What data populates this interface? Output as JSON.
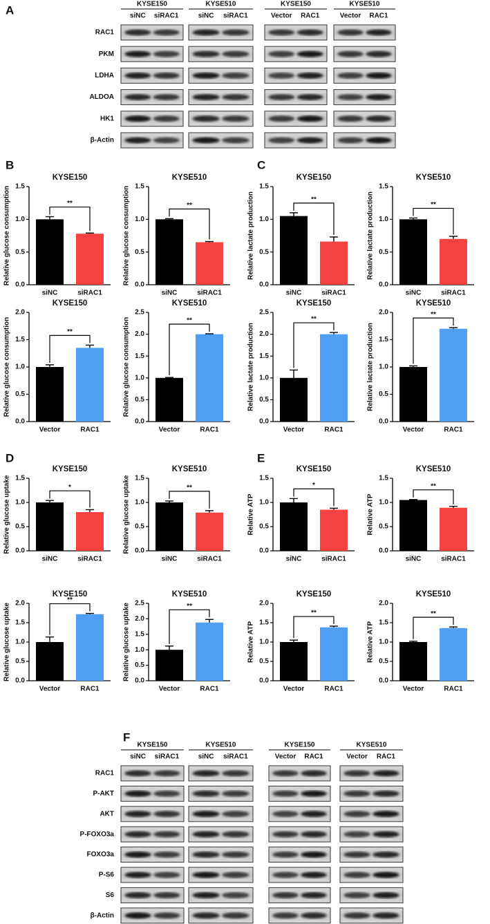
{
  "panels": [
    "A",
    "B",
    "C",
    "D",
    "E",
    "F"
  ],
  "blot_a": {
    "groups": [
      {
        "title": "KYSE150",
        "lanes": [
          "siNC",
          "siRAC1"
        ]
      },
      {
        "title": "KYSE510",
        "lanes": [
          "siNC",
          "siRAC1"
        ]
      },
      {
        "title": "KYSE150",
        "lanes": [
          "Vector",
          "RAC1"
        ]
      },
      {
        "title": "KYSE510",
        "lanes": [
          "Vector",
          "RAC1"
        ]
      }
    ],
    "rows": [
      "RAC1",
      "PKM",
      "LDHA",
      "ALDOA",
      "HK1",
      "β-Actin"
    ]
  },
  "blot_f": {
    "groups": [
      {
        "title": "KYSE150",
        "lanes": [
          "siNC",
          "siRAC1"
        ]
      },
      {
        "title": "KYSE510",
        "lanes": [
          "siNC",
          "siRAC1"
        ]
      },
      {
        "title": "KYSE150",
        "lanes": [
          "Vector",
          "RAC1"
        ]
      },
      {
        "title": "KYSE510",
        "lanes": [
          "Vector",
          "RAC1"
        ]
      }
    ],
    "rows": [
      "RAC1",
      "P-AKT",
      "AKT",
      "P-FOXO3a",
      "FOXO3a",
      "P-S6",
      "S6",
      "β-Actin"
    ]
  },
  "chart_data": [
    {
      "type": "bar",
      "title": "KYSE150",
      "y_label": "Relative glucose consumption",
      "categories": [
        "siNC",
        "siRAC1"
      ],
      "values": [
        1.0,
        0.78
      ],
      "errors": [
        0.04,
        0.01
      ],
      "colors": [
        "#000000",
        "#f5413f"
      ],
      "ylim": [
        0,
        1.5
      ],
      "yticks": [
        {
          "value": 0,
          "label": "0.0"
        },
        {
          "value": 0.5,
          "label": "0.5"
        },
        {
          "value": 1,
          "label": "1.0"
        },
        {
          "value": 1.5,
          "label": "1.5"
        }
      ],
      "annotation": "**"
    },
    {
      "type": "bar",
      "title": "KYSE510",
      "y_label": "Relative glucose consumption",
      "categories": [
        "siNC",
        "siRAC1"
      ],
      "values": [
        1.0,
        0.65
      ],
      "errors": [
        0.01,
        0.01
      ],
      "colors": [
        "#000000",
        "#f5413f"
      ],
      "ylim": [
        0,
        1.5
      ],
      "yticks": [
        {
          "value": 0,
          "label": "0.0"
        },
        {
          "value": 0.5,
          "label": "0.5"
        },
        {
          "value": 1,
          "label": "1.0"
        },
        {
          "value": 1.5,
          "label": "1.5"
        }
      ],
      "annotation": "**"
    },
    {
      "type": "bar",
      "title": "KYSE150",
      "y_label": "Relative lactate production",
      "categories": [
        "siNC",
        "siRAC1"
      ],
      "values": [
        1.05,
        0.66
      ],
      "errors": [
        0.05,
        0.07
      ],
      "colors": [
        "#000000",
        "#f5413f"
      ],
      "ylim": [
        0,
        1.5
      ],
      "yticks": [
        {
          "value": 0,
          "label": "0.0"
        },
        {
          "value": 0.5,
          "label": "0.5"
        },
        {
          "value": 1,
          "label": "1.0"
        },
        {
          "value": 1.5,
          "label": "1.5"
        }
      ],
      "annotation": "**"
    },
    {
      "type": "bar",
      "title": "KYSE510",
      "y_label": "Relative lactate production",
      "categories": [
        "siNC",
        "siRAC1"
      ],
      "values": [
        1.0,
        0.7
      ],
      "errors": [
        0.02,
        0.04
      ],
      "colors": [
        "#000000",
        "#f5413f"
      ],
      "ylim": [
        0,
        1.5
      ],
      "yticks": [
        {
          "value": 0,
          "label": "0.0"
        },
        {
          "value": 0.5,
          "label": "0.5"
        },
        {
          "value": 1,
          "label": "1.0"
        },
        {
          "value": 1.5,
          "label": "1.5"
        }
      ],
      "annotation": "**"
    },
    {
      "type": "bar",
      "title": "KYSE150",
      "y_label": "Relative glucose consumption",
      "categories": [
        "Vector",
        "RAC1"
      ],
      "values": [
        1.0,
        1.35
      ],
      "errors": [
        0.04,
        0.05
      ],
      "colors": [
        "#000000",
        "#4f9ff5"
      ],
      "ylim": [
        0,
        2
      ],
      "yticks": [
        {
          "value": 0,
          "label": "0.0"
        },
        {
          "value": 0.5,
          "label": "0.5"
        },
        {
          "value": 1,
          "label": "1.0"
        },
        {
          "value": 1.5,
          "label": "1.5"
        },
        {
          "value": 2,
          "label": "2.0"
        }
      ],
      "annotation": "**"
    },
    {
      "type": "bar",
      "title": "KYSE510",
      "y_label": "Relative glucose consumption",
      "categories": [
        "Vector",
        "RAC1"
      ],
      "values": [
        1.0,
        2.0
      ],
      "errors": [
        0.01,
        0.01
      ],
      "colors": [
        "#000000",
        "#4f9ff5"
      ],
      "ylim": [
        0,
        2.5
      ],
      "yticks": [
        {
          "value": 0,
          "label": "0.0"
        },
        {
          "value": 0.5,
          "label": "0.5"
        },
        {
          "value": 1,
          "label": "1.0"
        },
        {
          "value": 1.5,
          "label": "1.5"
        },
        {
          "value": 2,
          "label": "2.0"
        },
        {
          "value": 2.5,
          "label": "2.5"
        }
      ],
      "annotation": "**"
    },
    {
      "type": "bar",
      "title": "KYSE150",
      "y_label": "Relative lactate production",
      "categories": [
        "Vector",
        "RAC1"
      ],
      "values": [
        1.0,
        2.0
      ],
      "errors": [
        0.18,
        0.04
      ],
      "colors": [
        "#000000",
        "#4f9ff5"
      ],
      "ylim": [
        0,
        2.5
      ],
      "yticks": [
        {
          "value": 0,
          "label": "0.0"
        },
        {
          "value": 0.5,
          "label": "0.5"
        },
        {
          "value": 1,
          "label": "1.0"
        },
        {
          "value": 1.5,
          "label": "1.5"
        },
        {
          "value": 2,
          "label": "2.0"
        },
        {
          "value": 2.5,
          "label": "2.5"
        }
      ],
      "annotation": "**"
    },
    {
      "type": "bar",
      "title": "KYSE510",
      "y_label": "Relative lactate production",
      "categories": [
        "Vector",
        "RAC1"
      ],
      "values": [
        1.0,
        1.7
      ],
      "errors": [
        0.02,
        0.02
      ],
      "colors": [
        "#000000",
        "#4f9ff5"
      ],
      "ylim": [
        0,
        2
      ],
      "yticks": [
        {
          "value": 0,
          "label": "0.0"
        },
        {
          "value": 0.5,
          "label": "0.5"
        },
        {
          "value": 1,
          "label": "1.0"
        },
        {
          "value": 1.5,
          "label": "1.5"
        },
        {
          "value": 2,
          "label": "2.0"
        }
      ],
      "annotation": "**"
    },
    {
      "type": "bar",
      "title": "KYSE150",
      "y_label": "Relative glucose uptake",
      "categories": [
        "siNC",
        "siRAC1"
      ],
      "values": [
        1.0,
        0.8
      ],
      "errors": [
        0.04,
        0.05
      ],
      "colors": [
        "#000000",
        "#f5413f"
      ],
      "ylim": [
        0,
        1.5
      ],
      "yticks": [
        {
          "value": 0,
          "label": "0.0"
        },
        {
          "value": 0.5,
          "label": "0.5"
        },
        {
          "value": 1,
          "label": "1.0"
        },
        {
          "value": 1.5,
          "label": "1.5"
        }
      ],
      "annotation": "*"
    },
    {
      "type": "bar",
      "title": "KYSE510",
      "y_label": "Relative glucose uptake",
      "categories": [
        "siNC",
        "siRAC1"
      ],
      "values": [
        1.0,
        0.79
      ],
      "errors": [
        0.03,
        0.04
      ],
      "colors": [
        "#000000",
        "#f5413f"
      ],
      "ylim": [
        0,
        1.5
      ],
      "yticks": [
        {
          "value": 0,
          "label": "0.0"
        },
        {
          "value": 0.5,
          "label": "0.5"
        },
        {
          "value": 1,
          "label": "1.0"
        },
        {
          "value": 1.5,
          "label": "1.5"
        }
      ],
      "annotation": "**"
    },
    {
      "type": "bar",
      "title": "KYSE150",
      "y_label": "Relative ATP",
      "categories": [
        "siNC",
        "siRAC1"
      ],
      "values": [
        1.0,
        0.85
      ],
      "errors": [
        0.08,
        0.03
      ],
      "colors": [
        "#000000",
        "#f5413f"
      ],
      "ylim": [
        0,
        1.5
      ],
      "yticks": [
        {
          "value": 0,
          "label": "0.0"
        },
        {
          "value": 0.5,
          "label": "0.5"
        },
        {
          "value": 1,
          "label": "1.0"
        },
        {
          "value": 1.5,
          "label": "1.5"
        }
      ],
      "annotation": "*"
    },
    {
      "type": "bar",
      "title": "KYSE510",
      "y_label": "Relative ATP",
      "categories": [
        "siNC",
        "siRAC1"
      ],
      "values": [
        1.05,
        0.89
      ],
      "errors": [
        0.01,
        0.03
      ],
      "colors": [
        "#000000",
        "#f5413f"
      ],
      "ylim": [
        0,
        1.5
      ],
      "yticks": [
        {
          "value": 0,
          "label": "0.0"
        },
        {
          "value": 0.5,
          "label": "0.5"
        },
        {
          "value": 1,
          "label": "1.0"
        },
        {
          "value": 1.5,
          "label": "1.5"
        }
      ],
      "annotation": "**"
    },
    {
      "type": "bar",
      "title": "KYSE150",
      "y_label": "Relative glucose uptake",
      "categories": [
        "Vector",
        "RAC1"
      ],
      "values": [
        1.0,
        1.72
      ],
      "errors": [
        0.13,
        0.02
      ],
      "colors": [
        "#000000",
        "#4f9ff5"
      ],
      "ylim": [
        0,
        2
      ],
      "yticks": [
        {
          "value": 0,
          "label": "0.0"
        },
        {
          "value": 0.5,
          "label": "0.5"
        },
        {
          "value": 1,
          "label": "1.0"
        },
        {
          "value": 1.5,
          "label": "1.5"
        },
        {
          "value": 2,
          "label": "2.0"
        }
      ],
      "annotation": "**"
    },
    {
      "type": "bar",
      "title": "KYSE510",
      "y_label": "Relative glucose uptake",
      "categories": [
        "Vector",
        "RAC1"
      ],
      "values": [
        1.0,
        1.88
      ],
      "errors": [
        0.12,
        0.1
      ],
      "colors": [
        "#000000",
        "#4f9ff5"
      ],
      "ylim": [
        0,
        2.5
      ],
      "yticks": [
        {
          "value": 0,
          "label": "0.0"
        },
        {
          "value": 0.5,
          "label": "0.5"
        },
        {
          "value": 1,
          "label": "1.0"
        },
        {
          "value": 1.5,
          "label": "1.5"
        },
        {
          "value": 2,
          "label": "2.0"
        },
        {
          "value": 2.5,
          "label": "2.5"
        }
      ],
      "annotation": "**"
    },
    {
      "type": "bar",
      "title": "KYSE150",
      "y_label": "Relative ATP",
      "categories": [
        "Vector",
        "RAC1"
      ],
      "values": [
        1.0,
        1.38
      ],
      "errors": [
        0.05,
        0.03
      ],
      "colors": [
        "#000000",
        "#4f9ff5"
      ],
      "ylim": [
        0,
        2
      ],
      "yticks": [
        {
          "value": 0,
          "label": "0.0"
        },
        {
          "value": 0.5,
          "label": "0.5"
        },
        {
          "value": 1,
          "label": "1.0"
        },
        {
          "value": 1.5,
          "label": "1.5"
        },
        {
          "value": 2,
          "label": "2.0"
        }
      ],
      "annotation": "**"
    },
    {
      "type": "bar",
      "title": "KYSE510",
      "y_label": "Relative ATP",
      "categories": [
        "Vector",
        "RAC1"
      ],
      "values": [
        1.0,
        1.36
      ],
      "errors": [
        0.02,
        0.03
      ],
      "colors": [
        "#000000",
        "#4f9ff5"
      ],
      "ylim": [
        0,
        2
      ],
      "yticks": [
        {
          "value": 0,
          "label": "0.0"
        },
        {
          "value": 0.5,
          "label": "0.5"
        },
        {
          "value": 1,
          "label": "1.0"
        },
        {
          "value": 1.5,
          "label": "1.5"
        },
        {
          "value": 2,
          "label": "2.0"
        }
      ],
      "annotation": "**"
    }
  ]
}
